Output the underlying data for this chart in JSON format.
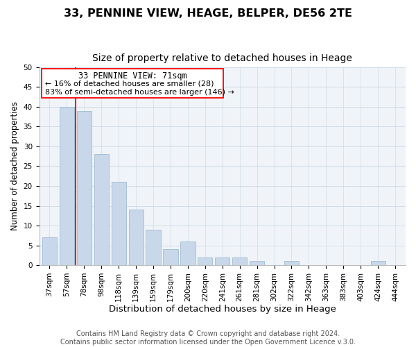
{
  "title": "33, PENNINE VIEW, HEAGE, BELPER, DE56 2TE",
  "subtitle": "Size of property relative to detached houses in Heage",
  "xlabel": "Distribution of detached houses by size in Heage",
  "ylabel": "Number of detached properties",
  "bar_labels": [
    "37sqm",
    "57sqm",
    "78sqm",
    "98sqm",
    "118sqm",
    "139sqm",
    "159sqm",
    "179sqm",
    "200sqm",
    "220sqm",
    "241sqm",
    "261sqm",
    "281sqm",
    "302sqm",
    "322sqm",
    "342sqm",
    "363sqm",
    "383sqm",
    "403sqm",
    "424sqm",
    "444sqm"
  ],
  "bar_values": [
    7,
    40,
    39,
    28,
    21,
    14,
    9,
    4,
    6,
    2,
    2,
    2,
    1,
    0,
    1,
    0,
    0,
    0,
    0,
    1,
    0
  ],
  "bar_color": "#c8d8ea",
  "bar_edge_color": "#a8c0d6",
  "ylim": [
    0,
    50
  ],
  "yticks": [
    0,
    5,
    10,
    15,
    20,
    25,
    30,
    35,
    40,
    45,
    50
  ],
  "property_line_x": 1.5,
  "property_line_label": "33 PENNINE VIEW: 71sqm",
  "annotation_line1": "← 16% of detached houses are smaller (28)",
  "annotation_line2": "83% of semi-detached houses are larger (146) →",
  "footer1": "Contains HM Land Registry data © Crown copyright and database right 2024.",
  "footer2": "Contains public sector information licensed under the Open Government Licence v.3.0.",
  "title_fontsize": 11.5,
  "subtitle_fontsize": 10,
  "xlabel_fontsize": 9.5,
  "ylabel_fontsize": 8.5,
  "tick_fontsize": 7.5,
  "annotation_fontsize": 8.5,
  "footer_fontsize": 7,
  "grid_color": "#d0dce8",
  "background_color": "#ffffff",
  "ax_background_color": "#f0f4f8"
}
